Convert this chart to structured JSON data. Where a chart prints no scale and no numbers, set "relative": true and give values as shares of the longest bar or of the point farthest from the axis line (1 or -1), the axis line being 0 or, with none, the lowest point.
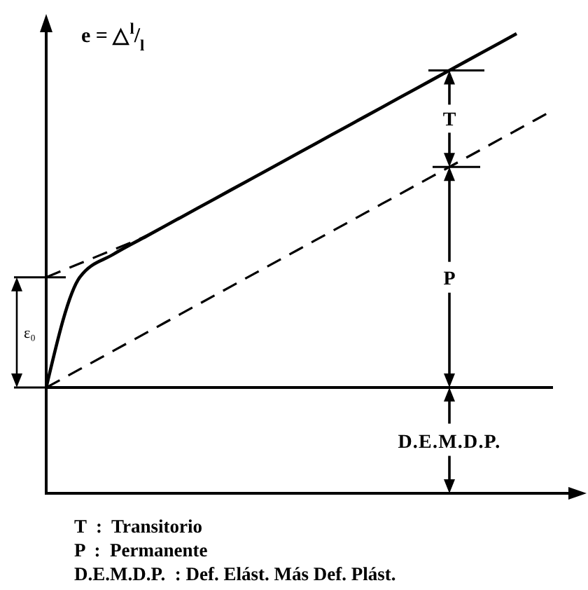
{
  "chart_data": {
    "type": "line",
    "relative": true,
    "ylabel": "e = △$^{l}$/$_{l}$",
    "categories": [
      null,
      null,
      null,
      null,
      null,
      null,
      null,
      null,
      null,
      null,
      null,
      null,
      null,
      null,
      null,
      null
    ],
    "series": [
      {
        "color": "#000000",
        "line_style": "solid",
        "values": [
          0.23,
          0.47,
          0.52,
          0.56,
          0.6,
          0.64,
          0.68,
          0.72,
          0.76,
          0.8,
          0.84,
          0.88,
          0.92,
          0.96,
          1,
          null
        ]
      },
      {
        "color": "#000000",
        "line_style": "dashed",
        "values": [
          0.47,
          0.5,
          0.53,
          0.56,
          null,
          null,
          null,
          null,
          null,
          null,
          null,
          null,
          null,
          null,
          null,
          null
        ]
      },
      {
        "color": "#000000",
        "line_style": "dashed",
        "values": [
          0.23,
          0.27,
          0.31,
          0.35,
          0.39,
          0.43,
          0.47,
          0.51,
          0.55,
          0.59,
          0.63,
          0.67,
          0.71,
          0.75,
          0.79,
          0.83
        ]
      }
    ],
    "ref_lines": [
      {
        "axis": "y",
        "value": 0.23
      }
    ],
    "annotations": [
      "T",
      "P",
      "D.E.M.D.P.",
      "ε₀",
      "T  :  Transitorio",
      "P  :  Permanente",
      "D.E.M.D.P.  : Def. Elást. Más Def. Plást."
    ]
  }
}
